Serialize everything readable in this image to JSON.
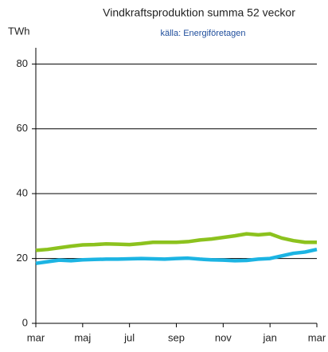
{
  "chart_data": {
    "type": "line",
    "title": "Vindkraftsproduktion summa 52 veckor",
    "subtitle": "källa: Energiföretagen",
    "y_label": "TWh",
    "categories": [
      "mar",
      null,
      null,
      null,
      "maj",
      null,
      null,
      null,
      "jul",
      null,
      null,
      null,
      "sep",
      null,
      null,
      null,
      "nov",
      null,
      null,
      null,
      "jan",
      null,
      null,
      null,
      "mar"
    ],
    "series": [
      {
        "color": "#8cc21e",
        "values": [
          22.5,
          22.8,
          23.3,
          23.8,
          24.2,
          24.3,
          24.5,
          24.4,
          24.3,
          24.6,
          25.0,
          25.0,
          25.0,
          25.2,
          25.7,
          26.0,
          26.5,
          27.0,
          27.6,
          27.3,
          27.6,
          26.3,
          25.5,
          25.0,
          25.0
        ]
      },
      {
        "color": "#1cb4e3",
        "values": [
          18.5,
          19.0,
          19.5,
          19.3,
          19.6,
          19.7,
          19.8,
          19.8,
          19.9,
          20.0,
          19.9,
          19.8,
          20.0,
          20.1,
          19.8,
          19.6,
          19.5,
          19.3,
          19.4,
          19.8,
          20.0,
          20.8,
          21.6,
          22.0,
          22.8
        ]
      }
    ],
    "ylim": [
      0,
      85
    ],
    "yticks": [
      0,
      20,
      40,
      60,
      80
    ],
    "grid": true
  }
}
